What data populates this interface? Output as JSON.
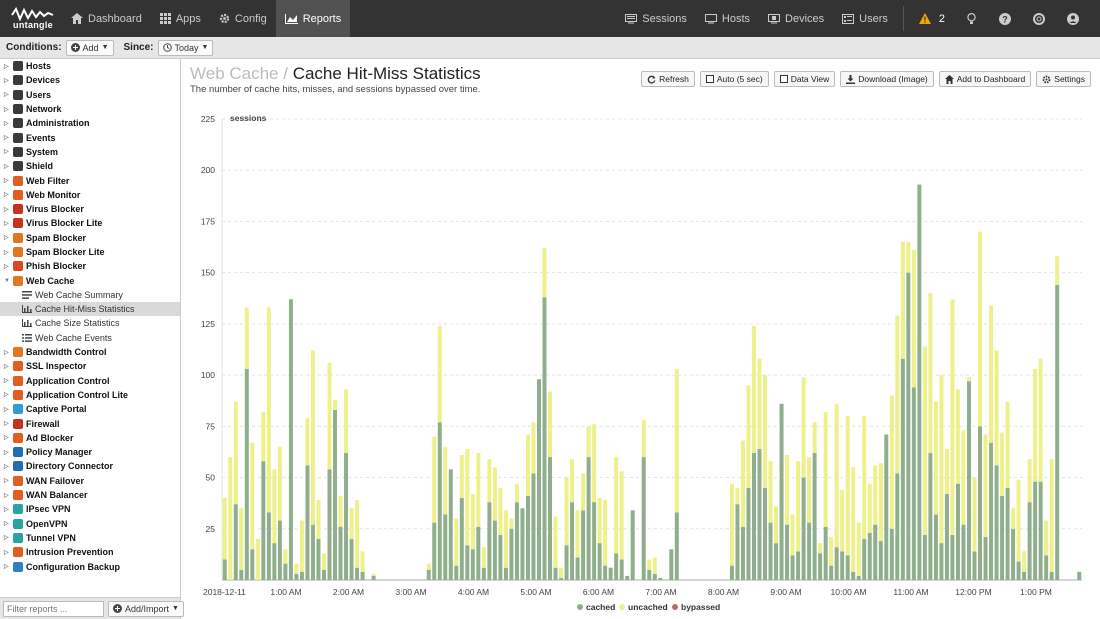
{
  "nav": {
    "logo_text": "untangle",
    "dashboard": "Dashboard",
    "apps": "Apps",
    "config": "Config",
    "reports": "Reports",
    "sessions": "Sessions",
    "hosts": "Hosts",
    "devices": "Devices",
    "users": "Users",
    "alert_count": "2"
  },
  "conditions": {
    "label": "Conditions:",
    "add": "Add",
    "since_label": "Since:",
    "since_value": "Today"
  },
  "sidebar": {
    "items": [
      {
        "label": "Hosts",
        "color": "#3a3a3a",
        "expanded": false
      },
      {
        "label": "Devices",
        "color": "#3a3a3a",
        "expanded": false
      },
      {
        "label": "Users",
        "color": "#3a3a3a",
        "expanded": false
      },
      {
        "label": "Network",
        "color": "#3a3a3a",
        "expanded": false
      },
      {
        "label": "Administration",
        "color": "#3a3a3a",
        "expanded": false
      },
      {
        "label": "Events",
        "color": "#3a3a3a",
        "expanded": false
      },
      {
        "label": "System",
        "color": "#3a3a3a",
        "expanded": false
      },
      {
        "label": "Shield",
        "color": "#3a3a3a",
        "expanded": false
      },
      {
        "label": "Web Filter",
        "color": "#e25d1f",
        "expanded": false
      },
      {
        "label": "Web Monitor",
        "color": "#e25d1f",
        "expanded": false
      },
      {
        "label": "Virus Blocker",
        "color": "#c7321e",
        "expanded": false
      },
      {
        "label": "Virus Blocker Lite",
        "color": "#c7321e",
        "expanded": false
      },
      {
        "label": "Spam Blocker",
        "color": "#e2771f",
        "expanded": false
      },
      {
        "label": "Spam Blocker Lite",
        "color": "#e2771f",
        "expanded": false
      },
      {
        "label": "Phish Blocker",
        "color": "#d9481e",
        "expanded": false
      },
      {
        "label": "Web Cache",
        "color": "#e2771f",
        "expanded": true
      }
    ],
    "web_cache_children": [
      {
        "label": "Web Cache Summary",
        "icon": "text-icon"
      },
      {
        "label": "Cache Hit-Miss Statistics",
        "icon": "bar-chart-icon"
      },
      {
        "label": "Cache Size Statistics",
        "icon": "bar-chart-icon"
      },
      {
        "label": "Web Cache Events",
        "icon": "list-icon"
      }
    ],
    "items_after": [
      {
        "label": "Bandwidth Control",
        "color": "#e2771f"
      },
      {
        "label": "SSL Inspector",
        "color": "#e25d1f"
      },
      {
        "label": "Application Control",
        "color": "#e25d1f"
      },
      {
        "label": "Application Control Lite",
        "color": "#e25d1f"
      },
      {
        "label": "Captive Portal",
        "color": "#2e9fd4"
      },
      {
        "label": "Firewall",
        "color": "#c7321e"
      },
      {
        "label": "Ad Blocker",
        "color": "#e25d1f"
      },
      {
        "label": "Policy Manager",
        "color": "#1f6fb2"
      },
      {
        "label": "Directory Connector",
        "color": "#1f6fb2"
      },
      {
        "label": "WAN Failover",
        "color": "#e25d1f"
      },
      {
        "label": "WAN Balancer",
        "color": "#e25d1f"
      },
      {
        "label": "IPsec VPN",
        "color": "#2aa3a3"
      },
      {
        "label": "OpenVPN",
        "color": "#2aa3a3"
      },
      {
        "label": "Tunnel VPN",
        "color": "#2aa3a3"
      },
      {
        "label": "Intrusion Prevention",
        "color": "#e25d1f"
      },
      {
        "label": "Configuration Backup",
        "color": "#2e7fc4"
      }
    ],
    "filter_placeholder": "Filter reports ...",
    "add_import": "Add/Import"
  },
  "report": {
    "breadcrumb": "Web Cache",
    "separator": " / ",
    "title": "Cache Hit-Miss Statistics",
    "description": "The number of cache hits, misses, and sessions bypassed over time."
  },
  "toolbar": {
    "refresh": "Refresh",
    "auto": "Auto (5 sec)",
    "data_view": "Data View",
    "download": "Download (Image)",
    "add_dashboard": "Add to Dashboard",
    "settings": "Settings"
  },
  "colors": {
    "cached": "#8fae8c",
    "uncached": "#eef08a",
    "bypassed": "#b96b6b",
    "nav_bg": "#333333"
  },
  "chart_data": {
    "type": "bar",
    "stacked": true,
    "ylabel": "sessions",
    "ylim": [
      0,
      225
    ],
    "yticks": [
      25,
      50,
      75,
      100,
      125,
      150,
      175,
      200,
      225
    ],
    "x_tick_labels": [
      "2018-12-11",
      "1:00 AM",
      "2:00 AM",
      "3:00 AM",
      "4:00 AM",
      "5:00 AM",
      "6:00 AM",
      "7:00 AM",
      "8:00 AM",
      "9:00 AM",
      "10:00 AM",
      "11:00 AM",
      "12:00 PM",
      "1:00 PM"
    ],
    "legend": [
      "cached",
      "uncached",
      "bypassed"
    ],
    "grid": true,
    "series": [
      {
        "name": "cached",
        "values": [
          10,
          0,
          37,
          5,
          103,
          15,
          0,
          58,
          33,
          18,
          29,
          8,
          137,
          3,
          4,
          56,
          27,
          20,
          5,
          54,
          83,
          26,
          62,
          20,
          6,
          4,
          0,
          2,
          0,
          0,
          0,
          0,
          0,
          0,
          0,
          0,
          0,
          5,
          28,
          77,
          32,
          54,
          7,
          40,
          17,
          15,
          26,
          6,
          38,
          29,
          22,
          6,
          25,
          38,
          35,
          41,
          52,
          98,
          138,
          60,
          6,
          1,
          17,
          38,
          11,
          34,
          60,
          38,
          18,
          7,
          6,
          13,
          10,
          2,
          34,
          0,
          60,
          5,
          3,
          1,
          0,
          15,
          33,
          0,
          0,
          0,
          0,
          0,
          0,
          0,
          0,
          0,
          7,
          37,
          26,
          45,
          62,
          64,
          45,
          28,
          18,
          86,
          27,
          12,
          14,
          50,
          28,
          62,
          13,
          26,
          7,
          16,
          14,
          12,
          4,
          2,
          20,
          23,
          27,
          19,
          71,
          25,
          52,
          108,
          150,
          94,
          193,
          22,
          62,
          32,
          18,
          42,
          22,
          47,
          27,
          97,
          14,
          75,
          21,
          67,
          56,
          41,
          45,
          25,
          9,
          4,
          38,
          48,
          48,
          12,
          4,
          144,
          0,
          0,
          0,
          4
        ]
      },
      {
        "name": "uncached",
        "values": [
          30,
          60,
          50,
          30,
          30,
          52,
          20,
          24,
          100,
          36,
          36,
          7,
          0,
          5,
          25,
          23,
          85,
          19,
          8,
          52,
          5,
          15,
          31,
          15,
          33,
          10,
          0,
          1,
          0,
          0,
          0,
          0,
          0,
          0,
          0,
          0,
          0,
          3,
          42,
          47,
          33,
          0,
          23,
          21,
          47,
          27,
          36,
          10,
          21,
          26,
          23,
          28,
          5,
          9,
          0,
          30,
          25,
          0,
          24,
          32,
          25,
          5,
          33,
          21,
          23,
          18,
          15,
          38,
          22,
          32,
          0,
          47,
          43,
          0,
          0,
          0,
          18,
          5,
          8,
          0,
          0,
          0,
          70,
          0,
          0,
          0,
          0,
          0,
          0,
          0,
          0,
          0,
          40,
          8,
          42,
          50,
          62,
          44,
          55,
          30,
          18,
          0,
          34,
          20,
          44,
          49,
          32,
          15,
          5,
          56,
          14,
          70,
          30,
          68,
          51,
          26,
          60,
          24,
          29,
          38,
          0,
          65,
          77,
          57,
          15,
          67,
          0,
          92,
          78,
          55,
          82,
          22,
          115,
          46,
          46,
          2,
          36,
          95,
          50,
          67,
          56,
          31,
          42,
          10,
          40,
          10,
          21,
          55,
          60,
          17,
          55,
          14,
          0,
          0,
          0,
          0
        ]
      },
      {
        "name": "bypassed",
        "values": [
          0,
          0,
          0,
          0,
          0,
          0,
          0,
          0,
          0,
          0,
          0,
          0,
          0,
          0,
          0,
          0,
          0,
          0,
          0,
          0,
          0,
          0,
          0,
          0,
          0,
          0,
          0,
          0,
          0,
          0,
          0,
          0,
          0,
          0,
          0,
          0,
          0,
          0,
          0,
          0,
          0,
          0,
          0,
          0,
          0,
          0,
          0,
          0,
          0,
          0,
          0,
          0,
          0,
          0,
          0,
          0,
          0,
          0,
          0,
          0,
          0,
          0,
          0,
          0,
          0,
          0,
          0,
          0,
          0,
          0,
          0,
          0,
          0,
          0,
          0,
          0,
          0,
          0,
          0,
          0,
          0,
          0,
          0,
          0,
          0,
          0,
          0,
          0,
          0,
          0,
          0,
          0,
          0,
          0,
          0,
          0,
          0,
          0,
          0,
          0,
          0,
          0,
          0,
          0,
          0,
          0,
          0,
          0,
          0,
          0,
          0,
          0,
          0,
          0,
          0,
          0,
          0,
          0,
          0,
          0,
          0,
          0,
          0,
          0,
          0,
          0,
          0,
          0,
          0,
          0,
          0,
          0,
          0,
          0,
          0,
          0,
          0,
          0,
          0,
          0,
          0,
          0,
          0,
          0,
          0,
          0,
          0,
          0,
          0,
          0,
          0,
          0,
          0,
          0,
          0,
          0
        ]
      }
    ]
  }
}
